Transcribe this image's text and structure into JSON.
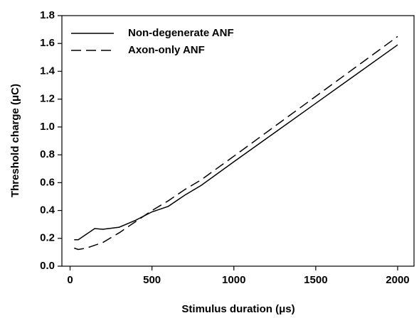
{
  "chart_data": {
    "type": "line",
    "xlabel": "Stimulus duration (μs)",
    "ylabel": "Threshold charge (μC)",
    "x": [
      25,
      50,
      100,
      150,
      200,
      300,
      400,
      500,
      600,
      700,
      800,
      1000,
      1500,
      2000
    ],
    "series": [
      {
        "name": "Non-degenerate ANF",
        "color": "#000000",
        "line_style": "solid",
        "values": [
          0.19,
          0.19,
          0.23,
          0.27,
          0.265,
          0.28,
          0.33,
          0.39,
          0.43,
          0.51,
          0.58,
          0.75,
          1.17,
          1.59
        ]
      },
      {
        "name": "Axon-only ANF",
        "color": "#000000",
        "line_style": "dashed",
        "values": [
          0.13,
          0.12,
          0.13,
          0.15,
          0.17,
          0.24,
          0.32,
          0.4,
          0.47,
          0.55,
          0.62,
          0.79,
          1.22,
          1.65
        ]
      }
    ],
    "xlim": [
      -50,
      2100
    ],
    "xticks": [
      0,
      500,
      1000,
      1500,
      2000
    ],
    "ylim": [
      0,
      1.8
    ],
    "yticks": [
      {
        "value": 0,
        "label": "0.0"
      },
      0.2,
      0.4,
      0.6,
      0.8,
      {
        "value": 1,
        "label": "1.0"
      },
      1.2,
      1.4,
      1.6,
      1.8
    ],
    "legend": "upper left",
    "grid": false
  }
}
